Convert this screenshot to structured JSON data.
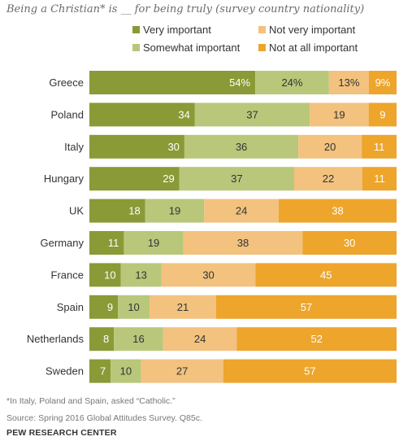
{
  "subtitle": "Being a Christian* is __ for being truly (survey country nationality)",
  "footnote": "*In Italy, Poland and Spain, asked “Catholic.”",
  "source": "Source: Spring 2016 Global Attitudes Survey. Q85c.",
  "org": "PEW RESEARCH CENTER",
  "colors": {
    "very": "#8a9a36",
    "somewhat": "#b8c77a",
    "not_very": "#f2c27e",
    "not_at_all": "#eda52c"
  },
  "chart_data": {
    "type": "bar",
    "orientation": "horizontal",
    "stacked": true,
    "legend_position": "top",
    "categories": [
      "Greece",
      "Poland",
      "Italy",
      "Hungary",
      "UK",
      "Germany",
      "France",
      "Spain",
      "Netherlands",
      "Sweden"
    ],
    "series": [
      {
        "name": "Very important",
        "values": [
          54,
          34,
          30,
          29,
          18,
          11,
          10,
          9,
          8,
          7
        ],
        "labels": [
          "54%",
          "34",
          "30",
          "29",
          "18",
          "11",
          "10",
          "9",
          "8",
          "7"
        ]
      },
      {
        "name": "Somewhat important",
        "values": [
          24,
          37,
          36,
          37,
          19,
          19,
          13,
          10,
          16,
          10
        ],
        "labels": [
          "24%",
          "37",
          "36",
          "37",
          "19",
          "19",
          "13",
          "10",
          "16",
          "10"
        ]
      },
      {
        "name": "Not very important",
        "values": [
          13,
          19,
          20,
          22,
          24,
          38,
          30,
          21,
          24,
          27
        ],
        "labels": [
          "13%",
          "19",
          "20",
          "22",
          "24",
          "38",
          "30",
          "21",
          "24",
          "27"
        ]
      },
      {
        "name": "Not at all important",
        "values": [
          9,
          9,
          11,
          11,
          38,
          30,
          45,
          57,
          52,
          57
        ],
        "labels": [
          "9%",
          "9",
          "11",
          "11",
          "38",
          "30",
          "45",
          "57",
          "52",
          "57"
        ]
      }
    ]
  }
}
